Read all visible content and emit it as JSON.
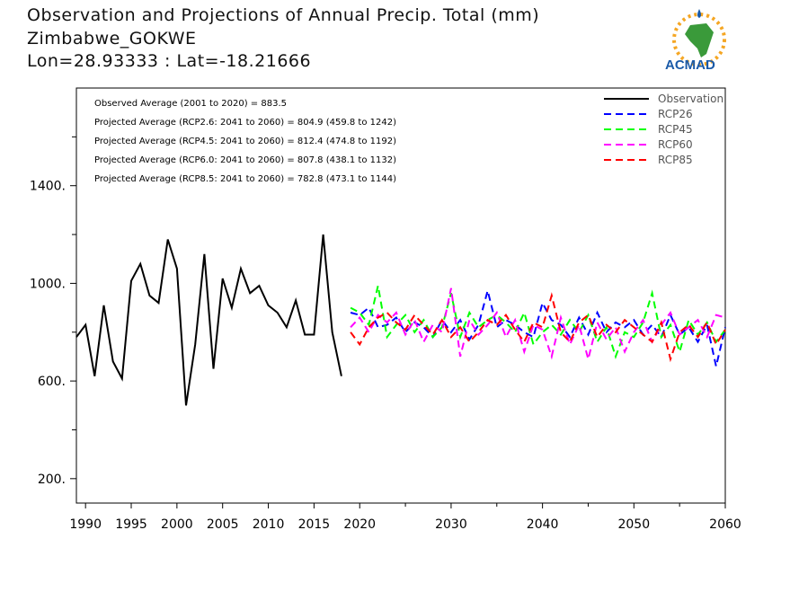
{
  "header": {
    "title": "Observation and Projections of Annual Precip. Total (mm)",
    "location": "Zimbabwe_GOKWE",
    "coords": "Lon=28.93333 : Lat=-18.21666"
  },
  "logo": {
    "text": "ACMAD",
    "icon": "africa-map-logo"
  },
  "chart_data": {
    "type": "line",
    "xlim": [
      1989,
      2060
    ],
    "ylim": [
      100,
      1800
    ],
    "x_ticks": [
      "1990",
      "1995",
      "2000",
      "2005",
      "2010",
      "2015",
      "2020",
      "2030",
      "2040",
      "2050",
      "2060"
    ],
    "y_ticks": [
      "200.",
      "600.",
      "1000.",
      "1400."
    ],
    "annotations": [
      "Observed Average (2001 to 2020) = 883.5",
      "Projected Average (RCP2.6: 2041 to 2060) = 804.9 (459.8 to 1242)",
      "Projected Average (RCP4.5: 2041 to 2060) = 812.4 (474.8 to 1192)",
      "Projected Average (RCP6.0: 2041 to 2060) = 807.8 (438.1 to 1132)",
      "Projected Average (RCP8.5: 2041 to 2060) = 782.8 (473.1 to 1144)"
    ],
    "legend_position": "top-right",
    "series": [
      {
        "name": "Observation",
        "color": "#000000",
        "dash": "solid",
        "x": [
          1989,
          1990,
          1991,
          1992,
          1993,
          1994,
          1995,
          1996,
          1997,
          1998,
          1999,
          2000,
          2001,
          2002,
          2003,
          2004,
          2005,
          2006,
          2007,
          2008,
          2009,
          2010,
          2011,
          2012,
          2013,
          2014,
          2015,
          2016,
          2017,
          2018,
          2019
        ],
        "values": [
          780,
          830,
          620,
          910,
          680,
          610,
          1010,
          1080,
          950,
          920,
          1180,
          1060,
          500,
          750,
          1120,
          650,
          1020,
          900,
          1060,
          960,
          990,
          910,
          880,
          820,
          930,
          790,
          790,
          1200,
          800,
          620,
          null
        ]
      },
      {
        "name": "RCP26",
        "color": "#0000ff",
        "dash": "dashed",
        "x": [
          2019,
          2020,
          2021,
          2022,
          2023,
          2024,
          2025,
          2026,
          2027,
          2028,
          2029,
          2030,
          2031,
          2032,
          2033,
          2034,
          2035,
          2036,
          2037,
          2038,
          2039,
          2040,
          2041,
          2042,
          2043,
          2044,
          2045,
          2046,
          2047,
          2048,
          2049,
          2050,
          2051,
          2052,
          2053,
          2054,
          2055,
          2056,
          2057,
          2058,
          2059,
          2060
        ],
        "values": [
          880,
          870,
          900,
          820,
          830,
          860,
          800,
          840,
          820,
          780,
          850,
          800,
          850,
          770,
          830,
          970,
          820,
          850,
          830,
          800,
          780,
          920,
          850,
          830,
          780,
          860,
          790,
          880,
          800,
          840,
          820,
          850,
          790,
          830,
          780,
          870,
          790,
          820,
          760,
          830,
          660,
          820
        ]
      },
      {
        "name": "RCP45",
        "color": "#00ff00",
        "dash": "dashed",
        "x": [
          2019,
          2020,
          2021,
          2022,
          2023,
          2024,
          2025,
          2026,
          2027,
          2028,
          2029,
          2030,
          2031,
          2032,
          2033,
          2034,
          2035,
          2036,
          2037,
          2038,
          2039,
          2040,
          2041,
          2042,
          2043,
          2044,
          2045,
          2046,
          2047,
          2048,
          2049,
          2050,
          2051,
          2052,
          2053,
          2054,
          2055,
          2056,
          2057,
          2058,
          2059,
          2060
        ],
        "values": [
          900,
          880,
          830,
          990,
          780,
          830,
          870,
          800,
          850,
          780,
          820,
          960,
          780,
          880,
          820,
          850,
          870,
          840,
          800,
          880,
          750,
          800,
          830,
          790,
          850,
          800,
          870,
          760,
          820,
          700,
          800,
          780,
          840,
          960,
          780,
          830,
          720,
          850,
          790,
          840,
          760,
          810
        ]
      },
      {
        "name": "RCP60",
        "color": "#ff00ff",
        "dash": "dashed",
        "x": [
          2019,
          2020,
          2021,
          2022,
          2023,
          2024,
          2025,
          2026,
          2027,
          2028,
          2029,
          2030,
          2031,
          2032,
          2033,
          2034,
          2035,
          2036,
          2037,
          2038,
          2039,
          2040,
          2041,
          2042,
          2043,
          2044,
          2045,
          2046,
          2047,
          2048,
          2049,
          2050,
          2051,
          2052,
          2053,
          2054,
          2055,
          2056,
          2057,
          2058,
          2059,
          2060
        ],
        "values": [
          820,
          860,
          800,
          870,
          840,
          880,
          790,
          850,
          760,
          830,
          800,
          980,
          700,
          850,
          790,
          830,
          880,
          780,
          850,
          720,
          830,
          810,
          700,
          860,
          750,
          830,
          690,
          840,
          770,
          820,
          720,
          800,
          850,
          760,
          830,
          880,
          790,
          820,
          850,
          780,
          870,
          860
        ]
      },
      {
        "name": "RCP85",
        "color": "#ff0000",
        "dash": "dashed",
        "x": [
          2019,
          2020,
          2021,
          2022,
          2023,
          2024,
          2025,
          2026,
          2027,
          2028,
          2029,
          2030,
          2031,
          2032,
          2033,
          2034,
          2035,
          2036,
          2037,
          2038,
          2039,
          2040,
          2041,
          2042,
          2043,
          2044,
          2045,
          2046,
          2047,
          2048,
          2049,
          2050,
          2051,
          2052,
          2053,
          2054,
          2055,
          2056,
          2057,
          2058,
          2059,
          2060
        ],
        "values": [
          800,
          750,
          820,
          860,
          880,
          840,
          810,
          870,
          830,
          790,
          850,
          780,
          820,
          760,
          800,
          850,
          830,
          870,
          810,
          760,
          840,
          820,
          950,
          800,
          760,
          840,
          870,
          780,
          830,
          800,
          850,
          820,
          790,
          760,
          840,
          690,
          800,
          830,
          780,
          840,
          750,
          810
        ]
      }
    ]
  }
}
